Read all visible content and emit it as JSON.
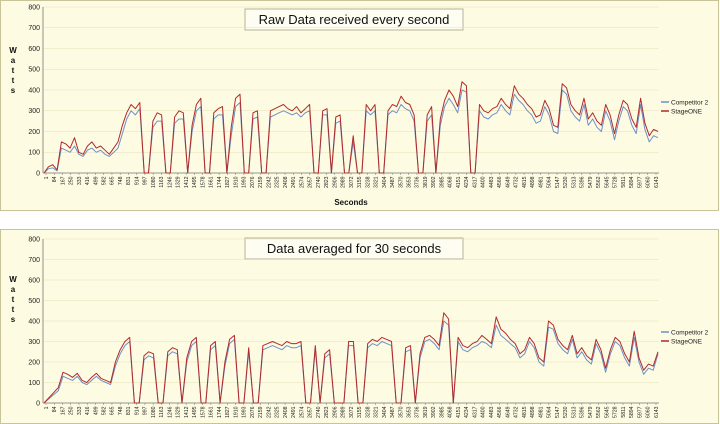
{
  "chart_data": [
    {
      "type": "line",
      "title": "Raw Data received every second",
      "ylabel": "Watts",
      "xlabel": "Seconds",
      "ylim": [
        0,
        800
      ],
      "yticks": [
        0,
        100,
        200,
        300,
        400,
        500,
        600,
        700,
        800
      ],
      "x_tick_labels": [
        "1",
        "84",
        "167",
        "250",
        "333",
        "416",
        "499",
        "582",
        "665",
        "748",
        "831",
        "914",
        "997",
        "1080",
        "1163",
        "1246",
        "1329",
        "1412",
        "1495",
        "1578",
        "1661",
        "1744",
        "1827",
        "1910",
        "1993",
        "2076",
        "2159",
        "2242",
        "2325",
        "2408",
        "2491",
        "2574",
        "2657",
        "2740",
        "2823",
        "2906",
        "2989",
        "3072",
        "3155",
        "3238",
        "3321",
        "3404",
        "3487",
        "3570",
        "3653",
        "3736",
        "3819",
        "3902",
        "3985",
        "4068",
        "4151",
        "4234",
        "4317",
        "4400",
        "4483",
        "4566",
        "4649",
        "4732",
        "4815",
        "4898",
        "4981",
        "5064",
        "5147",
        "5230",
        "5313",
        "5396",
        "5479",
        "5562",
        "5645",
        "5728",
        "5811",
        "5894",
        "5977",
        "6060",
        "6143"
      ],
      "legend_position": "right",
      "grid": true,
      "colors": [
        "#6f8fc8",
        "#b22a2a"
      ],
      "series": [
        {
          "name": "Competitor 2",
          "values": [
            0,
            20,
            25,
            10,
            120,
            110,
            100,
            130,
            90,
            80,
            110,
            120,
            100,
            110,
            90,
            80,
            100,
            120,
            190,
            260,
            300,
            280,
            310,
            0,
            0,
            220,
            250,
            250,
            0,
            0,
            240,
            260,
            260,
            0,
            200,
            300,
            320,
            0,
            0,
            260,
            280,
            280,
            0,
            180,
            320,
            340,
            0,
            0,
            260,
            270,
            0,
            0,
            270,
            280,
            290,
            300,
            290,
            280,
            290,
            270,
            290,
            300,
            0,
            0,
            280,
            280,
            0,
            240,
            250,
            0,
            0,
            150,
            0,
            0,
            300,
            280,
            300,
            0,
            0,
            280,
            300,
            290,
            330,
            310,
            300,
            250,
            0,
            0,
            250,
            280,
            0,
            230,
            320,
            360,
            330,
            290,
            400,
            390,
            0,
            0,
            300,
            270,
            260,
            280,
            290,
            330,
            300,
            280,
            380,
            350,
            330,
            300,
            280,
            240,
            250,
            320,
            280,
            200,
            190,
            400,
            380,
            300,
            270,
            250,
            330,
            230,
            260,
            220,
            200,
            300,
            250,
            160,
            250,
            320,
            300,
            230,
            190,
            330,
            210,
            150,
            180,
            170
          ]
        },
        {
          "name": "StageONE",
          "values": [
            0,
            30,
            40,
            15,
            150,
            140,
            120,
            170,
            100,
            90,
            130,
            150,
            120,
            130,
            110,
            90,
            120,
            150,
            230,
            290,
            330,
            310,
            340,
            0,
            0,
            250,
            290,
            280,
            0,
            0,
            270,
            300,
            290,
            0,
            230,
            330,
            360,
            0,
            0,
            290,
            310,
            320,
            0,
            220,
            360,
            380,
            0,
            0,
            290,
            300,
            0,
            0,
            300,
            310,
            320,
            330,
            310,
            300,
            320,
            290,
            310,
            330,
            0,
            0,
            300,
            310,
            0,
            270,
            280,
            0,
            0,
            180,
            0,
            0,
            330,
            300,
            330,
            0,
            0,
            300,
            330,
            320,
            370,
            340,
            330,
            280,
            0,
            0,
            280,
            320,
            0,
            260,
            350,
            400,
            370,
            320,
            440,
            420,
            0,
            0,
            330,
            300,
            290,
            310,
            320,
            360,
            330,
            310,
            420,
            380,
            360,
            330,
            310,
            270,
            280,
            350,
            310,
            230,
            220,
            430,
            410,
            330,
            300,
            280,
            360,
            260,
            290,
            250,
            230,
            330,
            280,
            190,
            280,
            350,
            330,
            260,
            220,
            360,
            240,
            180,
            210,
            200
          ]
        }
      ]
    },
    {
      "type": "line",
      "title": "Data averaged for 30 seconds",
      "ylabel": "Watts",
      "xlabel": "",
      "ylim": [
        0,
        800
      ],
      "yticks": [
        0,
        100,
        200,
        300,
        400,
        500,
        600,
        700,
        800
      ],
      "x_tick_labels": [
        "1",
        "84",
        "167",
        "250",
        "333",
        "416",
        "499",
        "582",
        "665",
        "748",
        "831",
        "914",
        "997",
        "1080",
        "1163",
        "1246",
        "1329",
        "1412",
        "1495",
        "1578",
        "1661",
        "1744",
        "1827",
        "1910",
        "1993",
        "2076",
        "2159",
        "2242",
        "2325",
        "2408",
        "2491",
        "2574",
        "2657",
        "2740",
        "2823",
        "2906",
        "2989",
        "3072",
        "3155",
        "3238",
        "3321",
        "3404",
        "3487",
        "3570",
        "3653",
        "3736",
        "3819",
        "3902",
        "3985",
        "4068",
        "4151",
        "4234",
        "4317",
        "4400",
        "4483",
        "4566",
        "4649",
        "4732",
        "4815",
        "4898",
        "4981",
        "5064",
        "5147",
        "5230",
        "5313",
        "5396",
        "5479",
        "5562",
        "5645",
        "5728",
        "5811",
        "5894",
        "5977",
        "6060",
        "6143"
      ],
      "legend_position": "right",
      "grid": true,
      "colors": [
        "#6f8fc8",
        "#b22a2a"
      ],
      "series": [
        {
          "name": "Competitor 2",
          "values": [
            0,
            20,
            40,
            60,
            130,
            120,
            110,
            130,
            100,
            90,
            110,
            130,
            110,
            100,
            90,
            180,
            240,
            280,
            300,
            0,
            0,
            210,
            230,
            220,
            0,
            0,
            230,
            250,
            240,
            0,
            200,
            280,
            300,
            0,
            0,
            260,
            280,
            0,
            180,
            290,
            310,
            0,
            0,
            250,
            0,
            0,
            260,
            270,
            280,
            270,
            260,
            280,
            270,
            270,
            280,
            0,
            0,
            260,
            0,
            220,
            240,
            0,
            0,
            0,
            280,
            280,
            0,
            0,
            270,
            290,
            280,
            300,
            290,
            280,
            0,
            0,
            250,
            260,
            0,
            220,
            300,
            310,
            290,
            260,
            400,
            380,
            0,
            300,
            260,
            250,
            270,
            280,
            300,
            290,
            270,
            380,
            330,
            310,
            290,
            270,
            220,
            240,
            300,
            270,
            200,
            180,
            370,
            360,
            290,
            260,
            240,
            310,
            220,
            250,
            210,
            190,
            290,
            240,
            150,
            240,
            300,
            280,
            220,
            180,
            320,
            200,
            140,
            170,
            160,
            240
          ]
        },
        {
          "name": "StageONE",
          "values": [
            0,
            25,
            50,
            75,
            150,
            140,
            125,
            145,
            110,
            100,
            125,
            145,
            120,
            110,
            100,
            200,
            260,
            300,
            320,
            0,
            0,
            230,
            250,
            240,
            0,
            0,
            250,
            270,
            260,
            0,
            220,
            300,
            320,
            0,
            0,
            280,
            300,
            0,
            200,
            310,
            330,
            0,
            0,
            270,
            0,
            0,
            280,
            290,
            300,
            290,
            280,
            300,
            290,
            290,
            300,
            0,
            0,
            280,
            0,
            240,
            260,
            0,
            0,
            0,
            300,
            300,
            0,
            0,
            290,
            310,
            300,
            320,
            310,
            300,
            0,
            0,
            270,
            280,
            0,
            240,
            320,
            330,
            310,
            280,
            440,
            410,
            0,
            320,
            280,
            270,
            290,
            300,
            330,
            310,
            290,
            420,
            360,
            340,
            310,
            290,
            240,
            260,
            320,
            290,
            220,
            200,
            400,
            380,
            310,
            280,
            260,
            330,
            240,
            270,
            230,
            210,
            310,
            260,
            170,
            260,
            320,
            300,
            240,
            200,
            350,
            220,
            160,
            190,
            180,
            250
          ]
        }
      ]
    }
  ]
}
